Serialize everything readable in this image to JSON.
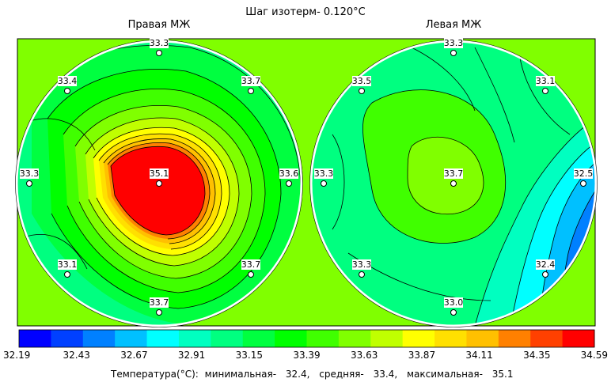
{
  "title": "Шаг изотерм- 0.120°C",
  "panels": [
    {
      "title": "Правая МЖ",
      "points": [
        {
          "label": "33.3",
          "value": 33.3
        },
        {
          "label": "33.4",
          "value": 33.4
        },
        {
          "label": "33.7",
          "value": 33.7
        },
        {
          "label": "33.3",
          "value": 33.3
        },
        {
          "label": "35.1",
          "value": 35.1
        },
        {
          "label": "33.6",
          "value": 33.6
        },
        {
          "label": "33.1",
          "value": 33.1
        },
        {
          "label": "33.7",
          "value": 33.7
        },
        {
          "label": "33.7",
          "value": 33.7
        }
      ]
    },
    {
      "title": "Левая МЖ",
      "points": [
        {
          "label": "33.3",
          "value": 33.3
        },
        {
          "label": "33.5",
          "value": 33.5
        },
        {
          "label": "33.1",
          "value": 33.1
        },
        {
          "label": "33.3",
          "value": 33.3
        },
        {
          "label": "33.7",
          "value": 33.7
        },
        {
          "label": "32.5",
          "value": 32.5
        },
        {
          "label": "33.3",
          "value": 33.3
        },
        {
          "label": "32.4",
          "value": 32.4
        },
        {
          "label": "33.0",
          "value": 33.0
        }
      ]
    }
  ],
  "colorbar": {
    "ticks": [
      "32.19",
      "32.43",
      "32.67",
      "32.91",
      "33.15",
      "33.39",
      "33.63",
      "33.87",
      "34.11",
      "34.35",
      "34.59"
    ],
    "colors": [
      "#0000ff",
      "#0040ff",
      "#0080ff",
      "#00c0ff",
      "#00ffff",
      "#00ffc0",
      "#00ff80",
      "#00ff40",
      "#00ff00",
      "#40ff00",
      "#80ff00",
      "#c0ff00",
      "#ffff00",
      "#ffe000",
      "#ffc000",
      "#ff8000",
      "#ff4000",
      "#ff0000"
    ]
  },
  "footer": {
    "label": "Температура(°C):",
    "min_label": "минимальная-",
    "min_value": "32.4,",
    "avg_label": "средняя-",
    "avg_value": "33.4,",
    "max_label": "максимальная-",
    "max_value": "35.1"
  },
  "chart_data": {
    "type": "heatmap",
    "title": "Шаг изотерм- 0.120°C",
    "isotherm_step": 0.12,
    "value_range": [
      32.19,
      34.59
    ],
    "panels": [
      {
        "name": "Правая МЖ",
        "values": [
          33.3,
          33.4,
          33.7,
          33.3,
          35.1,
          33.6,
          33.1,
          33.7,
          33.7
        ]
      },
      {
        "name": "Левая МЖ",
        "values": [
          33.3,
          33.5,
          33.1,
          33.3,
          33.7,
          32.5,
          33.3,
          32.4,
          33.0
        ]
      }
    ],
    "stats": {
      "min": 32.4,
      "mean": 33.4,
      "max": 35.1
    }
  }
}
